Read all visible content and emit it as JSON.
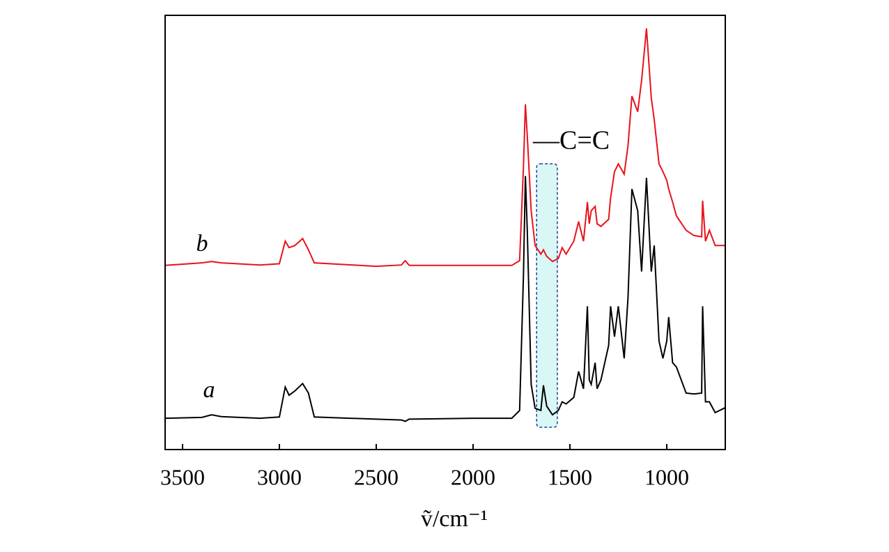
{
  "chart_data": {
    "type": "line",
    "x_label": "ṽ/cm⁻¹",
    "annotation": "—C=C",
    "highlight_range": [
      1672,
      1565
    ],
    "xlim": [
      3590,
      698
    ],
    "ylim": [
      0,
      100
    ],
    "xticks": [
      3500,
      3000,
      2500,
      2000,
      1500,
      1000
    ],
    "x": [
      3590,
      3400,
      3350,
      3300,
      3100,
      3000,
      2970,
      2950,
      2920,
      2880,
      2850,
      2820,
      2500,
      2370,
      2350,
      2330,
      2000,
      1800,
      1760,
      1740,
      1730,
      1720,
      1700,
      1680,
      1650,
      1637,
      1620,
      1590,
      1560,
      1540,
      1520,
      1480,
      1455,
      1430,
      1410,
      1400,
      1390,
      1370,
      1360,
      1340,
      1300,
      1290,
      1270,
      1250,
      1220,
      1200,
      1180,
      1150,
      1130,
      1105,
      1080,
      1065,
      1040,
      1020,
      1000,
      990,
      970,
      950,
      900,
      860,
      820,
      815,
      800,
      780,
      750,
      700
    ],
    "series": [
      {
        "name": "a",
        "color": "#000000",
        "values": [
          7.2,
          7.4,
          8,
          7.6,
          7.2,
          7.5,
          14.4,
          12.5,
          13.5,
          15.2,
          13,
          7.5,
          7,
          6.8,
          6.5,
          7,
          7.2,
          7.2,
          9,
          40,
          63,
          50,
          15,
          9.5,
          9,
          14.8,
          10,
          8,
          9,
          11,
          10.5,
          12,
          18,
          14,
          33,
          16,
          15,
          20,
          14,
          16,
          24,
          33,
          26,
          33,
          21,
          35,
          60,
          55,
          41,
          62.6,
          41,
          47,
          25,
          21,
          25,
          30.5,
          20,
          19,
          13,
          12.8,
          13,
          33,
          11,
          11,
          8.5,
          9.6
        ]
      },
      {
        "name": "b",
        "color": "#e8121b",
        "values": [
          42.4,
          43,
          43.3,
          43,
          42.5,
          42.8,
          48,
          46.5,
          47,
          48.6,
          46,
          43,
          42.2,
          42.5,
          43.5,
          42.4,
          42.4,
          42.4,
          43.5,
          65,
          79.5,
          72,
          55,
          47,
          45,
          46,
          44.5,
          43.3,
          44,
          46.5,
          45,
          48,
          52.5,
          48,
          57,
          52,
          55,
          56,
          52,
          51.4,
          53,
          58,
          64,
          65.8,
          63.4,
          70,
          81.4,
          77.8,
          85,
          97,
          81,
          76,
          65.8,
          64,
          62,
          60,
          57,
          53.8,
          50.5,
          49.3,
          49,
          57.3,
          48,
          50.5,
          47,
          47
        ]
      }
    ]
  }
}
